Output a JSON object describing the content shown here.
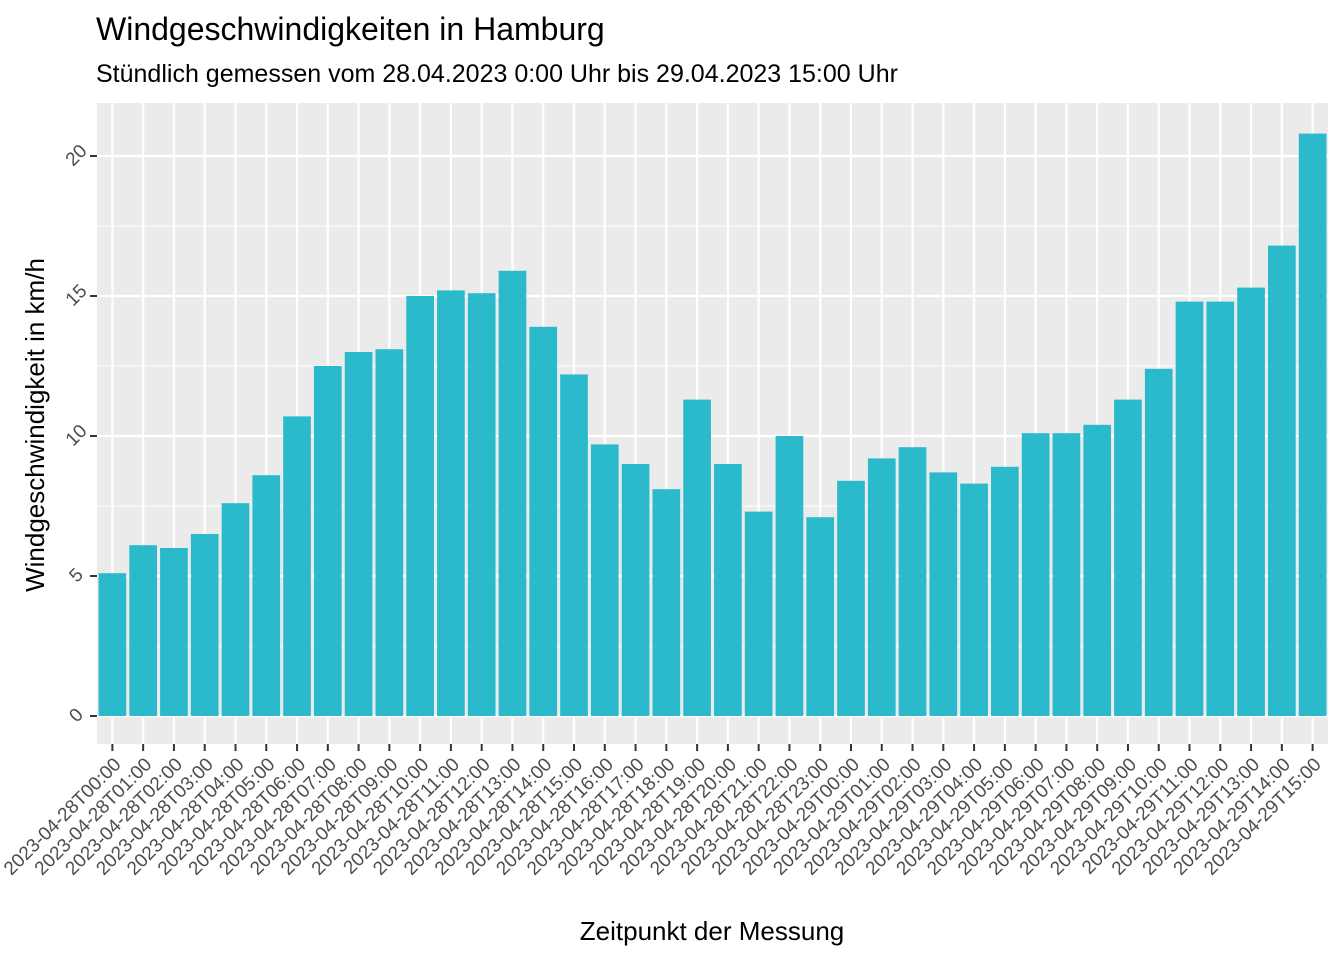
{
  "chart_data": {
    "type": "bar",
    "title": "Windgeschwindigkeiten in Hamburg",
    "subtitle": "Stündlich gemessen vom 28.04.2023 0:00 Uhr bis 29.04.2023 15:00 Uhr",
    "xlabel": "Zeitpunkt der Messung",
    "ylabel": "Windgeschwindigkeit in km/h",
    "ylim": [
      0,
      21.8
    ],
    "yticks": [
      0,
      5,
      10,
      15,
      20
    ],
    "grid": true,
    "bar_color": "#2bbacc",
    "panel_color": "#ebebeb",
    "categories": [
      "2023-04-28T00:00",
      "2023-04-28T01:00",
      "2023-04-28T02:00",
      "2023-04-28T03:00",
      "2023-04-28T04:00",
      "2023-04-28T05:00",
      "2023-04-28T06:00",
      "2023-04-28T07:00",
      "2023-04-28T08:00",
      "2023-04-28T09:00",
      "2023-04-28T10:00",
      "2023-04-28T11:00",
      "2023-04-28T12:00",
      "2023-04-28T13:00",
      "2023-04-28T14:00",
      "2023-04-28T15:00",
      "2023-04-28T16:00",
      "2023-04-28T17:00",
      "2023-04-28T18:00",
      "2023-04-28T19:00",
      "2023-04-28T20:00",
      "2023-04-28T21:00",
      "2023-04-28T22:00",
      "2023-04-28T23:00",
      "2023-04-29T00:00",
      "2023-04-29T01:00",
      "2023-04-29T02:00",
      "2023-04-29T03:00",
      "2023-04-29T04:00",
      "2023-04-29T05:00",
      "2023-04-29T06:00",
      "2023-04-29T07:00",
      "2023-04-29T08:00",
      "2023-04-29T09:00",
      "2023-04-29T10:00",
      "2023-04-29T11:00",
      "2023-04-29T12:00",
      "2023-04-29T13:00",
      "2023-04-29T14:00",
      "2023-04-29T15:00"
    ],
    "values": [
      5.1,
      6.1,
      6.0,
      6.5,
      7.6,
      8.6,
      10.7,
      12.5,
      13.0,
      13.1,
      15.0,
      15.2,
      15.1,
      15.9,
      13.9,
      12.2,
      9.7,
      9.0,
      8.1,
      11.3,
      9.0,
      7.3,
      10.0,
      7.1,
      8.4,
      9.2,
      9.6,
      8.7,
      8.3,
      8.9,
      10.1,
      10.1,
      10.4,
      11.3,
      12.4,
      14.8,
      14.8,
      15.3,
      16.8,
      20.8
    ]
  }
}
